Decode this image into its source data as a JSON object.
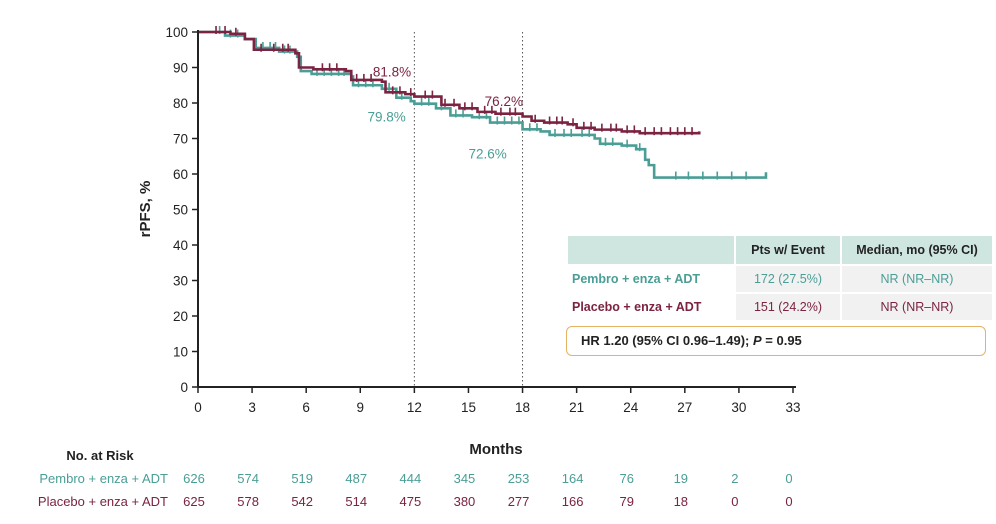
{
  "chart_data": {
    "type": "line",
    "ylabel": "rPFS, %",
    "xlabel": "Months",
    "xlim": [
      0,
      33
    ],
    "ylim": [
      0,
      100
    ],
    "x_ticks": [
      0,
      3,
      6,
      9,
      12,
      15,
      18,
      21,
      24,
      27,
      30,
      33
    ],
    "y_ticks": [
      0,
      10,
      20,
      30,
      40,
      50,
      60,
      70,
      80,
      90,
      100
    ],
    "reference_lines_x": [
      12,
      18
    ],
    "colors": {
      "pembro": "#4a9e96",
      "placebo": "#7b2341"
    },
    "series": [
      {
        "key": "pembro",
        "name": "Pembro + enza + ADT",
        "color": "#4a9e96",
        "points": [
          [
            0,
            100
          ],
          [
            1.5,
            99
          ],
          [
            2.6,
            98
          ],
          [
            3.2,
            95.5
          ],
          [
            4.5,
            94.5
          ],
          [
            5.5,
            93
          ],
          [
            5.7,
            89
          ],
          [
            6.3,
            88.2
          ],
          [
            8.5,
            87.5
          ],
          [
            8.6,
            85
          ],
          [
            10.2,
            84
          ],
          [
            11,
            81.5
          ],
          [
            11.8,
            80.5
          ],
          [
            12,
            79.8
          ],
          [
            13.2,
            78.5
          ],
          [
            14,
            76.5
          ],
          [
            15.2,
            76
          ],
          [
            16.2,
            74.5
          ],
          [
            18,
            72.6
          ],
          [
            19,
            72
          ],
          [
            19.5,
            71
          ],
          [
            22,
            70
          ],
          [
            22.3,
            68.5
          ],
          [
            23.5,
            68
          ],
          [
            24.3,
            67
          ],
          [
            24.8,
            64
          ],
          [
            25,
            62.5
          ],
          [
            25.3,
            59
          ],
          [
            26,
            59
          ],
          [
            31.5,
            59
          ],
          [
            31.5,
            60.5
          ]
        ],
        "censor_x": [
          1.2,
          1.8,
          2.2,
          3.6,
          4.0,
          4.3,
          4.8,
          5.1,
          6.6,
          7.0,
          7.4,
          7.8,
          8.1,
          8.9,
          9.3,
          9.7,
          10.6,
          11.3,
          12.4,
          12.8,
          13.5,
          14.3,
          14.7,
          15.6,
          16.0,
          16.6,
          17.0,
          17.4,
          17.8,
          18.4,
          18.8,
          19.8,
          20.3,
          20.7,
          21.3,
          21.7,
          22.6,
          23.0,
          23.8,
          24.5,
          26.5,
          27.2,
          28.0,
          28.8,
          29.6,
          30.4
        ]
      },
      {
        "key": "placebo",
        "name": "Placebo + enza + ADT",
        "color": "#7b2341",
        "points": [
          [
            0,
            100
          ],
          [
            1.8,
            99.5
          ],
          [
            2.6,
            98
          ],
          [
            3.1,
            95
          ],
          [
            5.4,
            94
          ],
          [
            5.6,
            90
          ],
          [
            6.4,
            89.5
          ],
          [
            8.2,
            89
          ],
          [
            8.5,
            86.5
          ],
          [
            10.2,
            86
          ],
          [
            10.4,
            83
          ],
          [
            11.5,
            82.5
          ],
          [
            12,
            81.8
          ],
          [
            13.5,
            79.5
          ],
          [
            14.5,
            78.5
          ],
          [
            15.5,
            77.5
          ],
          [
            16.5,
            77
          ],
          [
            18,
            76.2
          ],
          [
            18.5,
            75
          ],
          [
            19.2,
            74.5
          ],
          [
            20.5,
            74
          ],
          [
            21,
            73
          ],
          [
            22,
            72.5
          ],
          [
            23.5,
            72
          ],
          [
            24.5,
            71.5
          ],
          [
            27.8,
            71.5
          ],
          [
            27.8,
            72
          ]
        ],
        "censor_x": [
          1.0,
          1.5,
          2.1,
          3.5,
          4.2,
          4.7,
          5.0,
          6.9,
          7.3,
          7.7,
          8.8,
          9.2,
          9.6,
          10.8,
          11.2,
          11.8,
          12.6,
          13.0,
          13.7,
          14.2,
          14.8,
          15.2,
          15.9,
          16.3,
          16.8,
          17.3,
          17.6,
          18.7,
          19.5,
          19.9,
          20.2,
          20.8,
          21.4,
          21.8,
          22.4,
          22.9,
          23.2,
          23.8,
          24.2,
          24.8,
          25.3,
          25.7,
          26.2,
          26.6,
          27.0,
          27.4
        ]
      }
    ],
    "annotations": [
      {
        "text": "81.8%",
        "x": 9.7,
        "y": 87.4,
        "series": "placebo"
      },
      {
        "text": "79.8%",
        "x": 9.4,
        "y": 74.8,
        "series": "pembro"
      },
      {
        "text": "76.2%",
        "x": 15.9,
        "y": 79.2,
        "series": "placebo"
      },
      {
        "text": "72.6%",
        "x": 15.0,
        "y": 64.4,
        "series": "pembro"
      }
    ],
    "legend_table": {
      "headers": [
        "",
        "Pts w/ Event",
        "Median, mo (95% CI)"
      ],
      "rows": [
        {
          "label": "Pembro + enza + ADT",
          "events": "172 (27.5%)",
          "median": "NR (NR–NR)",
          "series": "pembro"
        },
        {
          "label": "Placebo + enza + ADT",
          "events": "151 (24.2%)",
          "median": "NR (NR–NR)",
          "series": "placebo"
        }
      ]
    },
    "hr_text": {
      "prefix": "HR 1.20 (95% CI 0.96–1.49); ",
      "p_label": "P",
      "p_value": " = 0.95"
    },
    "at_risk": {
      "title": "No. at Risk",
      "timepoints": [
        0,
        3,
        6,
        9,
        12,
        15,
        18,
        21,
        24,
        27,
        30,
        33
      ],
      "rows": [
        {
          "label": "Pembro + enza + ADT",
          "series": "pembro",
          "values": [
            "626",
            "574",
            "519",
            "487",
            "444",
            "345",
            "253",
            "164",
            "76",
            "19",
            "2",
            "0"
          ]
        },
        {
          "label": "Placebo + enza + ADT",
          "series": "placebo",
          "values": [
            "625",
            "578",
            "542",
            "514",
            "475",
            "380",
            "277",
            "166",
            "79",
            "18",
            "0",
            "0"
          ]
        }
      ]
    }
  }
}
